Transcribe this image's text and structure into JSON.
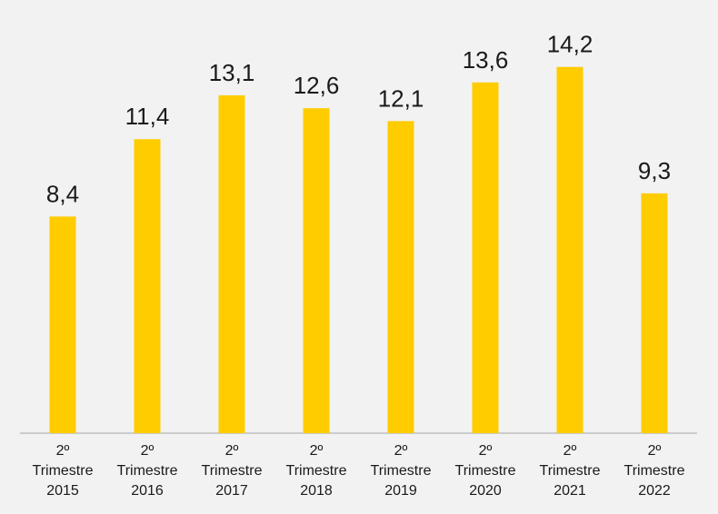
{
  "chart_data": {
    "type": "bar",
    "categories": [
      "2º Trimestre 2015",
      "2º Trimestre 2016",
      "2º Trimestre 2017",
      "2º Trimestre 2018",
      "2º Trimestre 2019",
      "2º Trimestre 2020",
      "2º Trimestre 2021",
      "2º Trimestre 2022"
    ],
    "values": [
      8.4,
      11.4,
      13.1,
      12.6,
      12.1,
      13.6,
      14.2,
      9.3
    ],
    "value_labels": [
      "8,4",
      "11,4",
      "13,1",
      "12,6",
      "12,1",
      "13,6",
      "14,2",
      "9,3"
    ],
    "color": "#ffcc00"
  }
}
